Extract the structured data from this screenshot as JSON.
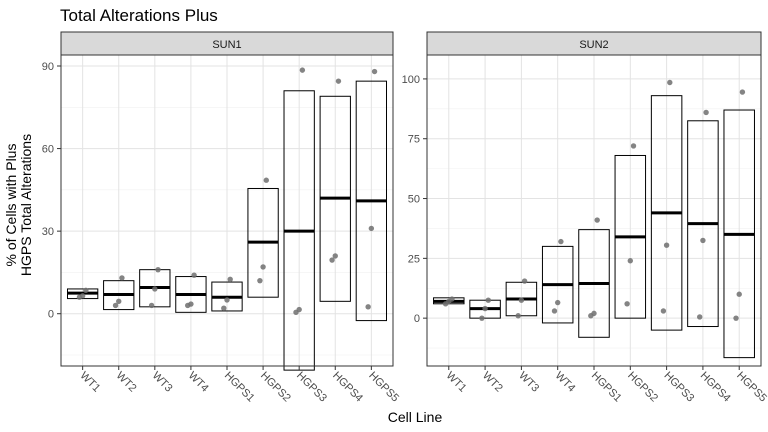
{
  "chart_data": {
    "type": "box",
    "title": "Total Alterations Plus",
    "xlabel": "Cell Line",
    "ylabel_lines": [
      "% of Cells with Plus",
      "HGPS Total Alterations"
    ],
    "categories": [
      "WT1",
      "WT2",
      "WT3",
      "WT4",
      "HGPS1",
      "HGPS2",
      "HGPS3",
      "HGPS4",
      "HGPS5"
    ],
    "panels": [
      {
        "name": "SUN1",
        "ylim": [
          -19,
          94
        ],
        "yticks": [
          0,
          30,
          60,
          90
        ],
        "boxes": [
          {
            "category": "WT1",
            "low": 5.5,
            "mid": 7.5,
            "high": 9
          },
          {
            "category": "WT2",
            "low": 1.5,
            "mid": 7,
            "high": 12
          },
          {
            "category": "WT3",
            "low": 2.5,
            "mid": 9.5,
            "high": 16
          },
          {
            "category": "WT4",
            "low": 0.5,
            "mid": 7,
            "high": 13.5
          },
          {
            "category": "HGPS1",
            "low": 1,
            "mid": 6,
            "high": 11.5
          },
          {
            "category": "HGPS2",
            "low": 6,
            "mid": 26,
            "high": 45.5
          },
          {
            "category": "HGPS3",
            "low": -20.5,
            "mid": 30,
            "high": 81
          },
          {
            "category": "HGPS4",
            "low": 4.5,
            "mid": 42,
            "high": 79
          },
          {
            "category": "HGPS5",
            "low": -2.5,
            "mid": 41,
            "high": 84.5
          }
        ],
        "points": [
          {
            "category": "WT1",
            "values": [
              6,
              6.5,
              8.5
            ]
          },
          {
            "category": "WT2",
            "values": [
              3,
              4.5,
              13
            ]
          },
          {
            "category": "WT3",
            "values": [
              3,
              9,
              16
            ]
          },
          {
            "category": "WT4",
            "values": [
              3,
              3.5,
              14
            ]
          },
          {
            "category": "HGPS1",
            "values": [
              2,
              5,
              12.5
            ]
          },
          {
            "category": "HGPS2",
            "values": [
              12,
              17,
              48.5
            ]
          },
          {
            "category": "HGPS3",
            "values": [
              0.5,
              1.5,
              88.5
            ]
          },
          {
            "category": "HGPS4",
            "values": [
              19.5,
              21,
              84.5
            ]
          },
          {
            "category": "HGPS5",
            "values": [
              2.5,
              31,
              88
            ]
          }
        ]
      },
      {
        "name": "SUN2",
        "ylim": [
          -20,
          110
        ],
        "yticks": [
          0,
          25,
          50,
          75,
          100
        ],
        "boxes": [
          {
            "category": "WT1",
            "low": 6,
            "mid": 7,
            "high": 8.5
          },
          {
            "category": "WT2",
            "low": 0,
            "mid": 4,
            "high": 7.5
          },
          {
            "category": "WT3",
            "low": 1,
            "mid": 8,
            "high": 15
          },
          {
            "category": "WT4",
            "low": -2,
            "mid": 14,
            "high": 30
          },
          {
            "category": "HGPS1",
            "low": -8,
            "mid": 14.5,
            "high": 37
          },
          {
            "category": "HGPS2",
            "low": 0,
            "mid": 34,
            "high": 68
          },
          {
            "category": "HGPS3",
            "low": -5,
            "mid": 44,
            "high": 93
          },
          {
            "category": "HGPS4",
            "low": -3.5,
            "mid": 39.5,
            "high": 82.5
          },
          {
            "category": "HGPS5",
            "low": -16.5,
            "mid": 35,
            "high": 87
          }
        ],
        "points": [
          {
            "category": "WT1",
            "values": [
              6,
              7,
              8
            ]
          },
          {
            "category": "WT2",
            "values": [
              0,
              4,
              7.5
            ]
          },
          {
            "category": "WT3",
            "values": [
              1,
              7.5,
              15.5
            ]
          },
          {
            "category": "WT4",
            "values": [
              3,
              6.5,
              32
            ]
          },
          {
            "category": "HGPS1",
            "values": [
              1,
              2,
              41
            ]
          },
          {
            "category": "HGPS2",
            "values": [
              6,
              24,
              72
            ]
          },
          {
            "category": "HGPS3",
            "values": [
              3,
              30.5,
              98.5
            ]
          },
          {
            "category": "HGPS4",
            "values": [
              0.5,
              32.5,
              86
            ]
          },
          {
            "category": "HGPS5",
            "values": [
              0,
              10,
              94.5
            ]
          }
        ]
      }
    ]
  }
}
